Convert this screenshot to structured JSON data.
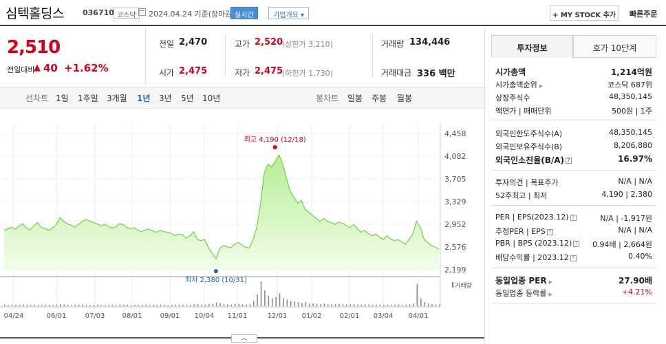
{
  "header": {
    "company": "심텍홀딩스",
    "code": "036710",
    "market": "코스닥",
    "date_basis": "2024.04.24 기준(장마감)",
    "live_button": "실시간",
    "company_info_button": "기업개요 ▾",
    "mystock_button": "+ MY STOCK 추가",
    "quick_order": "빠른주문"
  },
  "price": {
    "current": "2,510",
    "change_label": "전일대비",
    "change_arrow": "▲",
    "change_value": "40",
    "change_pct": "+1.62%"
  },
  "stats": {
    "prev_label": "전일",
    "prev": "2,470",
    "high_label": "고가",
    "high": "2,520",
    "upper_limit": "(상한가 3,210)",
    "volume_label": "거래량",
    "volume": "134,446",
    "open_label": "시가",
    "open": "2,475",
    "low_label": "저가",
    "low": "2,475",
    "lower_limit": "(하한가 1,730)",
    "amount_label": "거래대금",
    "amount": "336 백만"
  },
  "periods": {
    "line_label": "선차트",
    "items": [
      "1일",
      "1주일",
      "3개월",
      "1년",
      "3년",
      "5년",
      "10년"
    ],
    "active": "1년",
    "candle_label": "봉차트",
    "candle_items": [
      "일봉",
      "주봉",
      "월봉"
    ]
  },
  "chart_data": {
    "type": "area",
    "y_ticks": [
      "4,458",
      "4,082",
      "3,705",
      "3,329",
      "2,952",
      "2,576",
      "2,199"
    ],
    "ylim": [
      2199,
      4458
    ],
    "x_labels": [
      "04/24",
      "06/01",
      "07/03",
      "08/01",
      "09/01",
      "10/04",
      "11/01",
      "12/01",
      "01/02",
      "02/01",
      "03/04",
      "04/01"
    ],
    "values": [
      2850,
      2880,
      2900,
      2870,
      2920,
      2960,
      2890,
      2860,
      2930,
      2980,
      2900,
      2880,
      2850,
      2890,
      2940,
      3060,
      3000,
      2960,
      2940,
      2910,
      2950,
      3000,
      3030,
      3010,
      2980,
      2960,
      2930,
      2950,
      2920,
      2890,
      2910,
      2960,
      2950,
      2900,
      2880,
      2890,
      2850,
      2830,
      2860,
      2870,
      2840,
      2820,
      2850,
      2830,
      2820,
      2800,
      2760,
      2790,
      2780,
      2720,
      2760,
      2830,
      2700,
      2680,
      2700,
      2560,
      2470,
      2380,
      2550,
      2600,
      2580,
      2560,
      2620,
      2650,
      2610,
      2570,
      2560,
      2700,
      2900,
      3300,
      3800,
      3950,
      3900,
      4000,
      4100,
      3950,
      3700,
      3500,
      3400,
      3300,
      3350,
      3200,
      3150,
      3100,
      3050,
      3000,
      3050,
      3000,
      2980,
      2950,
      2990,
      2970,
      2930,
      2900,
      2950,
      2880,
      2820,
      2850,
      2800,
      2760,
      2790,
      2740,
      2700,
      2760,
      2710,
      2680,
      2700,
      2660,
      2620,
      2700,
      2800,
      3000,
      2900,
      2700,
      2650,
      2600,
      2570,
      2540
    ],
    "high_annotation": "최고 4,190 (12/18)",
    "low_annotation": "최저 2,380 (10/31)",
    "volume_legend": "거래량",
    "volume_spikes": [
      0.05,
      0.04,
      0.06,
      0.05,
      0.05,
      0.07,
      0.05,
      0.04,
      0.06,
      0.05,
      0.04,
      0.05,
      0.05,
      0.04,
      0.06,
      0.08,
      0.06,
      0.05,
      0.04,
      0.05,
      0.05,
      0.06,
      0.05,
      0.04,
      0.05,
      0.05,
      0.04,
      0.05,
      0.04,
      0.05,
      0.04,
      0.06,
      0.05,
      0.05,
      0.04,
      0.05,
      0.04,
      0.05,
      0.05,
      0.04,
      0.05,
      0.04,
      0.05,
      0.05,
      0.04,
      0.05,
      0.06,
      0.05,
      0.05,
      0.06,
      0.05,
      0.07,
      0.08,
      0.06,
      0.05,
      0.08,
      0.1,
      0.15,
      0.12,
      0.08,
      0.07,
      0.06,
      0.09,
      0.08,
      0.07,
      0.06,
      0.07,
      0.2,
      0.45,
      0.95,
      0.6,
      0.4,
      0.3,
      0.35,
      0.5,
      0.3,
      0.25,
      0.2,
      0.18,
      0.15,
      0.12,
      0.15,
      0.1,
      0.1,
      0.09,
      0.08,
      0.1,
      0.08,
      0.07,
      0.08,
      0.09,
      0.07,
      0.06,
      0.07,
      0.08,
      0.06,
      0.06,
      0.07,
      0.06,
      0.05,
      0.06,
      0.05,
      0.05,
      0.06,
      0.05,
      0.05,
      0.06,
      0.05,
      0.05,
      0.07,
      0.1,
      0.85,
      0.3,
      0.15,
      0.1,
      0.08,
      0.07,
      0.06
    ],
    "colors": {
      "line": "#6cd33f",
      "fill_top": "#b6ee94",
      "fill_bottom": "#f2fdea",
      "high": "#d6001c",
      "low": "#1f5fbf"
    }
  },
  "side": {
    "tab_invest": "투자정보",
    "tab_order": "호가 10단계",
    "market_cap_label": "시가총액",
    "market_cap": "1,214억원",
    "cap_rank_label": "시가총액순위",
    "cap_rank": "코스닥 687위",
    "shares_label": "상장주식수",
    "shares": "48,350,145",
    "par_label": "액면가 | 매매단위",
    "par": "500원 | 1주",
    "foreign_limit_label": "외국인한도주식수(A)",
    "foreign_limit": "48,350,145",
    "foreign_hold_label": "외국인보유주식수(B)",
    "foreign_hold": "8,206,880",
    "foreign_ratio_label": "외국인소진율(B/A)",
    "foreign_ratio": "16.97%",
    "opinion_label": "투자의견 | 목표주가",
    "opinion": "N/A | N/A",
    "week52_label": "52주최고 | 최저",
    "week52": "4,190 | 2,380",
    "per_label": "PER | EPS(2023.12)",
    "per": "N/A | -1,917원",
    "est_per_label": "추정PER | EPS",
    "est_per": "N/A | N/A",
    "pbr_label": "PBR | BPS (2023.12)",
    "pbr": "0.94배 | 2,664원",
    "div_label": "배당수익률 | 2023.12",
    "div": "0.40%",
    "industry_per_label": "동일업종 PER",
    "industry_per": "27.90배",
    "industry_chg_label": "동일업종 등락률",
    "industry_chg": "+4.21%"
  }
}
